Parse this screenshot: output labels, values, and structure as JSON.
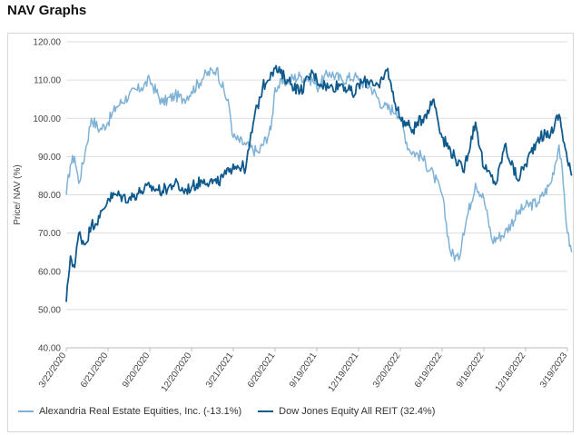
{
  "page": {
    "title": "NAV Graphs"
  },
  "colors": {
    "series1": "#7fb2d6",
    "series2": "#0f5a8c",
    "grid": "#dddddd",
    "axis": "#bbbbbb"
  },
  "chart_data": {
    "type": "line",
    "title": "",
    "xlabel": "",
    "ylabel": "Price/ NAV (%)",
    "ylim": [
      40,
      120
    ],
    "yticks": [
      "40.00",
      "50.00",
      "60.00",
      "70.00",
      "80.00",
      "90.00",
      "100.00",
      "110.00",
      "120.00"
    ],
    "xticks": [
      "3/22/2020",
      "6/21/2020",
      "9/20/2020",
      "12/20/2020",
      "3/21/2021",
      "6/20/2021",
      "9/19/2021",
      "12/19/2021",
      "3/20/2022",
      "6/19/2022",
      "9/18/2022",
      "12/18/2022",
      "3/19/2023"
    ],
    "legend_position": "bottom-left",
    "series": [
      {
        "name": "Alexandria Real Estate Equities, Inc. (-13.1%)",
        "color": "#7fb2d6",
        "x": [
          0,
          0.1,
          0.2,
          0.3,
          0.45,
          0.6,
          0.8,
          1.0,
          1.2,
          1.5,
          1.8,
          2.0,
          2.3,
          2.6,
          2.8,
          3.0,
          3.3,
          3.6,
          3.9,
          4.0,
          4.3,
          4.6,
          4.9,
          5.0,
          5.3,
          5.6,
          5.9,
          6.0,
          6.3,
          6.6,
          6.9,
          7.0,
          7.3,
          7.6,
          7.9,
          8.0,
          8.2,
          8.5,
          8.8,
          9.0,
          9.2,
          9.4,
          9.5,
          9.8,
          10.0,
          10.2,
          10.5,
          10.8,
          11.0,
          11.3,
          11.6,
          11.8,
          11.9,
          12.0,
          12.1
        ],
        "values": [
          80,
          88,
          90,
          83,
          91,
          100,
          97,
          99,
          103,
          106,
          108,
          110,
          104,
          106,
          105,
          107,
          111,
          113,
          103,
          95,
          93,
          91,
          97,
          108,
          110,
          111,
          110,
          108,
          112,
          110,
          111,
          110,
          108,
          103,
          102,
          100,
          92,
          90,
          85,
          80,
          65,
          63,
          70,
          83,
          79,
          68,
          70,
          75,
          77,
          78,
          83,
          93,
          83,
          70,
          65
        ]
      },
      {
        "name": "Dow Jones Equity All REIT (32.4%)",
        "color": "#0f5a8c",
        "x": [
          0,
          0.05,
          0.1,
          0.2,
          0.3,
          0.45,
          0.6,
          0.8,
          1.0,
          1.2,
          1.5,
          1.8,
          2.0,
          2.3,
          2.6,
          2.8,
          3.0,
          3.3,
          3.6,
          3.9,
          4.0,
          4.3,
          4.5,
          4.7,
          4.9,
          5.0,
          5.3,
          5.6,
          5.9,
          6.0,
          6.3,
          6.6,
          6.9,
          7.0,
          7.3,
          7.5,
          7.7,
          7.8,
          8.0,
          8.3,
          8.6,
          8.8,
          9.0,
          9.3,
          9.5,
          9.8,
          10.0,
          10.3,
          10.5,
          10.8,
          11.0,
          11.3,
          11.6,
          11.8,
          12.0,
          12.1
        ],
        "values": [
          52,
          58,
          64,
          61,
          70,
          67,
          72,
          74,
          79,
          80,
          79,
          81,
          82,
          81,
          83,
          81,
          82,
          84,
          83,
          86,
          88,
          87,
          100,
          108,
          112,
          113,
          110,
          107,
          112,
          110,
          108,
          109,
          106,
          109,
          110,
          108,
          113,
          107,
          100,
          97,
          101,
          105,
          95,
          90,
          86,
          99,
          87,
          83,
          93,
          84,
          88,
          95,
          96,
          101,
          89,
          85
        ]
      }
    ]
  }
}
